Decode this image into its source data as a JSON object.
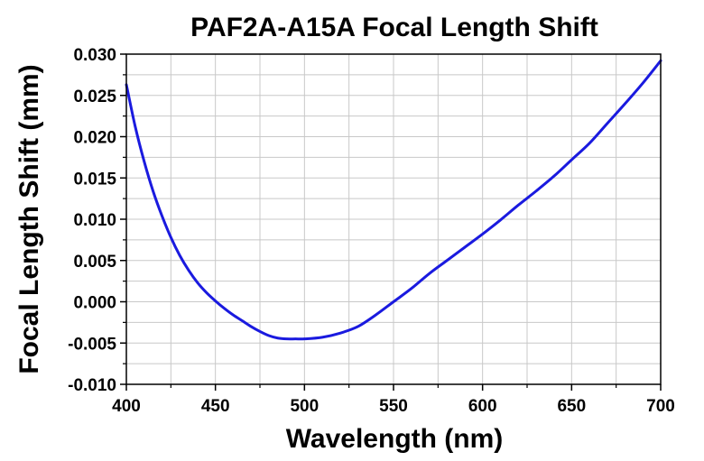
{
  "chart_data": {
    "type": "line",
    "title": "PAF2A-A15A Focal Length Shift",
    "xlabel": "Wavelength (nm)",
    "ylabel": "Focal Length Shift (mm)",
    "xlim": [
      400,
      700
    ],
    "ylim": [
      -0.01,
      0.03
    ],
    "x_ticks": [
      "400",
      "450",
      "500",
      "550",
      "600",
      "650",
      "700"
    ],
    "y_ticks": [
      "-0.010",
      "-0.005",
      "0.000",
      "0.005",
      "0.010",
      "0.015",
      "0.020",
      "0.025",
      "0.030"
    ],
    "grid": true,
    "legend": "none",
    "series": [
      {
        "color": "#1a1adf",
        "x": [
          400,
          405,
          410,
          415,
          420,
          425,
          430,
          435,
          440,
          445,
          450,
          455,
          460,
          465,
          470,
          475,
          480,
          485,
          490,
          495,
          500,
          510,
          520,
          530,
          540,
          550,
          560,
          570,
          580,
          590,
          600,
          610,
          620,
          630,
          640,
          650,
          660,
          670,
          680,
          690,
          700
        ],
        "y": [
          0.0263,
          0.0212,
          0.017,
          0.0134,
          0.0104,
          0.0078,
          0.0056,
          0.0038,
          0.0023,
          0.0011,
          0.0001,
          -0.0008,
          -0.0016,
          -0.0023,
          -0.003,
          -0.0036,
          -0.0041,
          -0.0044,
          -0.0045,
          -0.0045,
          -0.0045,
          -0.0043,
          -0.0038,
          -0.003,
          -0.0016,
          0.0,
          0.0016,
          0.0034,
          0.005,
          0.0066,
          0.0082,
          0.0099,
          0.0117,
          0.0134,
          0.0152,
          0.0172,
          0.0192,
          0.0216,
          0.024,
          0.0265,
          0.0292
        ]
      }
    ]
  }
}
